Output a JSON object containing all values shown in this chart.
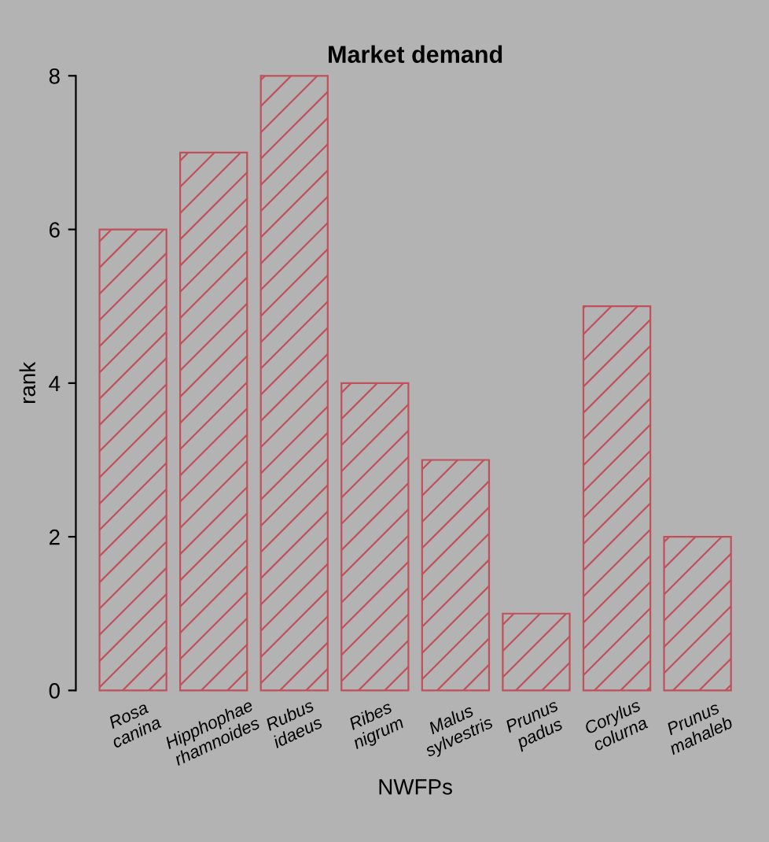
{
  "chart_data": {
    "type": "bar",
    "title": "Market demand",
    "xlabel": "NWFPs",
    "ylabel": "rank",
    "categories": [
      "Rosa\ncanina",
      "Hipphophae\nrhamnoides",
      "Rubus\nidaeus",
      "Ribes\nnigrum",
      "Malus\nsylvestris",
      "Prunus\npadus",
      "Corylus\ncolurna",
      "Prunus\nmahaleb"
    ],
    "values": [
      6,
      7,
      8,
      4,
      3,
      1,
      5,
      2
    ],
    "color": "#c0505a",
    "ylim": [
      0,
      8
    ],
    "yticks": [
      0,
      2,
      4,
      6,
      8
    ],
    "grid": false,
    "legend": false
  }
}
